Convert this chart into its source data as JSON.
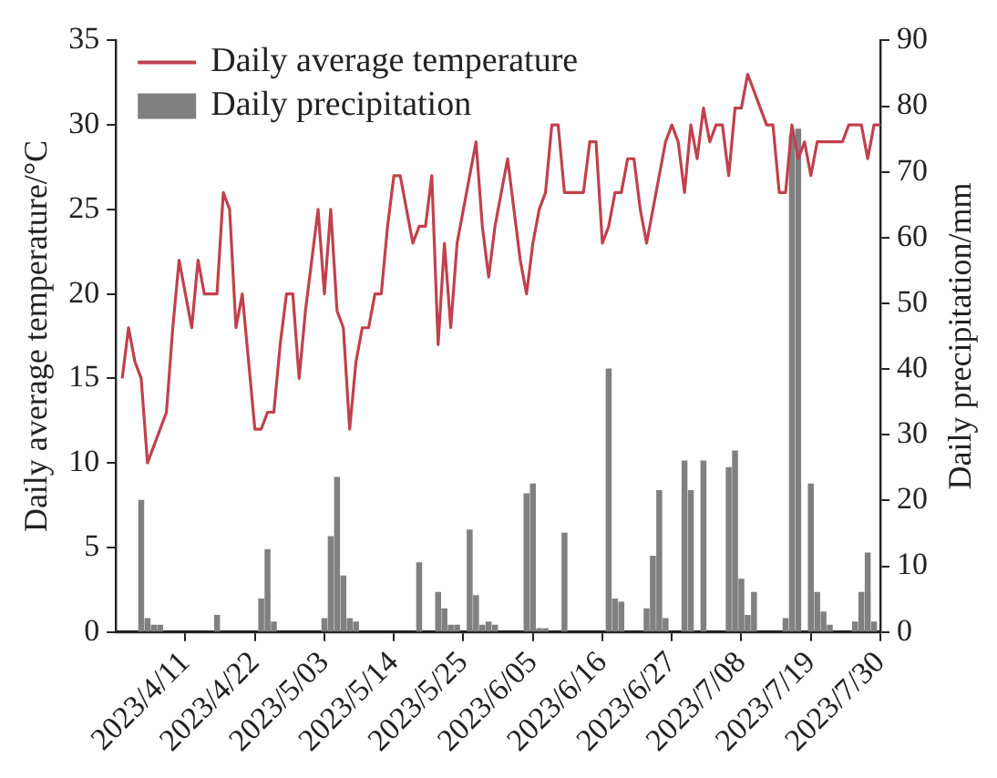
{
  "chart_data": {
    "type": "line",
    "ylabel": "Daily average temperature/°C",
    "y2label": "Daily precipitation/mm",
    "x": [
      "2023-04-01",
      "2023-04-02",
      "2023-04-03",
      "2023-04-04",
      "2023-04-05",
      "2023-04-06",
      "2023-04-07",
      "2023-04-08",
      "2023-04-09",
      "2023-04-10",
      "2023-04-11",
      "2023-04-12",
      "2023-04-13",
      "2023-04-14",
      "2023-04-15",
      "2023-04-16",
      "2023-04-17",
      "2023-04-18",
      "2023-04-19",
      "2023-04-20",
      "2023-04-21",
      "2023-04-22",
      "2023-04-23",
      "2023-04-24",
      "2023-04-25",
      "2023-04-26",
      "2023-04-27",
      "2023-04-28",
      "2023-04-29",
      "2023-04-30",
      "2023-05-01",
      "2023-05-02",
      "2023-05-03",
      "2023-05-04",
      "2023-05-05",
      "2023-05-06",
      "2023-05-07",
      "2023-05-08",
      "2023-05-09",
      "2023-05-10",
      "2023-05-11",
      "2023-05-12",
      "2023-05-13",
      "2023-05-14",
      "2023-05-15",
      "2023-05-16",
      "2023-05-17",
      "2023-05-18",
      "2023-05-19",
      "2023-05-20",
      "2023-05-21",
      "2023-05-22",
      "2023-05-23",
      "2023-05-24",
      "2023-05-25",
      "2023-05-26",
      "2023-05-27",
      "2023-05-28",
      "2023-05-29",
      "2023-05-30",
      "2023-05-31",
      "2023-06-01",
      "2023-06-02",
      "2023-06-03",
      "2023-06-04",
      "2023-06-05",
      "2023-06-06",
      "2023-06-07",
      "2023-06-08",
      "2023-06-09",
      "2023-06-10",
      "2023-06-11",
      "2023-06-12",
      "2023-06-13",
      "2023-06-14",
      "2023-06-15",
      "2023-06-16",
      "2023-06-17",
      "2023-06-18",
      "2023-06-19",
      "2023-06-20",
      "2023-06-21",
      "2023-06-22",
      "2023-06-23",
      "2023-06-24",
      "2023-06-25",
      "2023-06-26",
      "2023-06-27",
      "2023-06-28",
      "2023-06-29",
      "2023-06-30",
      "2023-07-01",
      "2023-07-02",
      "2023-07-03",
      "2023-07-04",
      "2023-07-05",
      "2023-07-06",
      "2023-07-07",
      "2023-07-08",
      "2023-07-09",
      "2023-07-10",
      "2023-07-11",
      "2023-07-12",
      "2023-07-13",
      "2023-07-14",
      "2023-07-15",
      "2023-07-16",
      "2023-07-17",
      "2023-07-18",
      "2023-07-19",
      "2023-07-20",
      "2023-07-21",
      "2023-07-22",
      "2023-07-23",
      "2023-07-24",
      "2023-07-25",
      "2023-07-26",
      "2023-07-27",
      "2023-07-28",
      "2023-07-29",
      "2023-07-30"
    ],
    "series": [
      {
        "name": "Daily average temperature",
        "color": "#c0414d",
        "values": [
          15,
          18,
          16,
          15,
          10,
          11,
          12,
          13,
          18,
          22,
          20,
          18,
          22,
          20,
          20,
          20,
          26,
          25,
          18,
          20,
          16,
          12,
          12,
          13,
          13,
          17,
          20,
          20,
          15,
          19,
          22,
          25,
          20,
          25,
          19,
          18,
          12,
          16,
          18,
          18,
          20,
          20,
          24,
          27,
          27,
          25,
          23,
          24,
          24,
          27,
          17,
          23,
          18,
          23,
          25,
          27,
          29,
          24,
          21,
          24,
          26,
          28,
          25,
          22,
          20,
          23,
          25,
          26,
          30,
          30,
          26,
          26,
          26,
          26,
          29,
          29,
          23,
          24,
          26,
          26,
          28,
          28,
          25,
          23,
          25,
          27,
          29,
          30,
          29,
          26,
          30,
          28,
          31,
          29,
          30,
          30,
          27,
          31,
          31,
          33,
          32,
          31,
          30,
          30,
          26,
          26,
          30,
          28,
          29,
          27,
          29,
          29,
          29,
          29,
          29,
          30,
          30,
          30,
          28,
          30,
          30
        ]
      },
      {
        "name": "Daily precipitation",
        "type": "bar",
        "axis": "y2",
        "color": "#808080",
        "x": [
          "2023-04-04",
          "2023-04-05",
          "2023-04-06",
          "2023-04-07",
          "2023-04-16",
          "2023-04-23",
          "2023-04-24",
          "2023-04-25",
          "2023-05-03",
          "2023-05-04",
          "2023-05-05",
          "2023-05-06",
          "2023-05-07",
          "2023-05-08",
          "2023-05-18",
          "2023-05-21",
          "2023-05-22",
          "2023-05-23",
          "2023-05-24",
          "2023-05-26",
          "2023-05-27",
          "2023-05-28",
          "2023-05-29",
          "2023-05-30",
          "2023-06-04",
          "2023-06-05",
          "2023-06-06",
          "2023-06-07",
          "2023-06-10",
          "2023-06-17",
          "2023-06-18",
          "2023-06-19",
          "2023-06-23",
          "2023-06-24",
          "2023-06-25",
          "2023-06-26",
          "2023-06-29",
          "2023-06-30",
          "2023-07-02",
          "2023-07-06",
          "2023-07-07",
          "2023-07-08",
          "2023-07-09",
          "2023-07-10",
          "2023-07-15",
          "2023-07-16",
          "2023-07-17",
          "2023-07-19",
          "2023-07-20",
          "2023-07-21",
          "2023-07-22",
          "2023-07-26",
          "2023-07-27",
          "2023-07-28",
          "2023-07-29"
        ],
        "values": [
          20,
          2,
          1,
          1,
          2.5,
          5,
          12.5,
          1.5,
          2,
          14.5,
          23.5,
          8.5,
          2,
          1.5,
          10.5,
          6,
          3.5,
          1,
          1,
          15.5,
          5.5,
          1,
          1.5,
          1,
          21,
          22.5,
          0.5,
          0.5,
          15,
          40,
          5,
          4.5,
          3.5,
          11.5,
          21.5,
          2,
          26,
          21.5,
          26,
          25,
          27.5,
          8,
          2.5,
          6,
          2,
          75.5,
          76.5,
          22.5,
          6,
          3,
          1,
          1.5,
          6,
          12,
          1.5
        ]
      }
    ],
    "xlim": [
      "2023-03-31",
      "2023-07-30"
    ],
    "xticks": [
      {
        "value": "2023-04-11",
        "label": "2023/4/11"
      },
      {
        "value": "2023-04-22",
        "label": "2023/4/22"
      },
      {
        "value": "2023-05-03",
        "label": "2023/5/03"
      },
      {
        "value": "2023-05-14",
        "label": "2023/5/14"
      },
      {
        "value": "2023-05-25",
        "label": "2023/5/25"
      },
      {
        "value": "2023-06-05",
        "label": "2023/6/05"
      },
      {
        "value": "2023-06-16",
        "label": "2023/6/16"
      },
      {
        "value": "2023-06-27",
        "label": "2023/6/27"
      },
      {
        "value": "2023-07-08",
        "label": "2023/7/08"
      },
      {
        "value": "2023-07-19",
        "label": "2023/7/19"
      },
      {
        "value": "2023-07-30",
        "label": "2023/7/30"
      }
    ],
    "ylim": [
      0,
      35
    ],
    "yticks": [
      0,
      5,
      10,
      15,
      20,
      25,
      30,
      35
    ],
    "y2lim": [
      0,
      90
    ],
    "y2ticks": [
      0,
      10,
      20,
      30,
      40,
      50,
      60,
      70,
      80,
      90
    ],
    "grid": false,
    "legend": "top left"
  }
}
